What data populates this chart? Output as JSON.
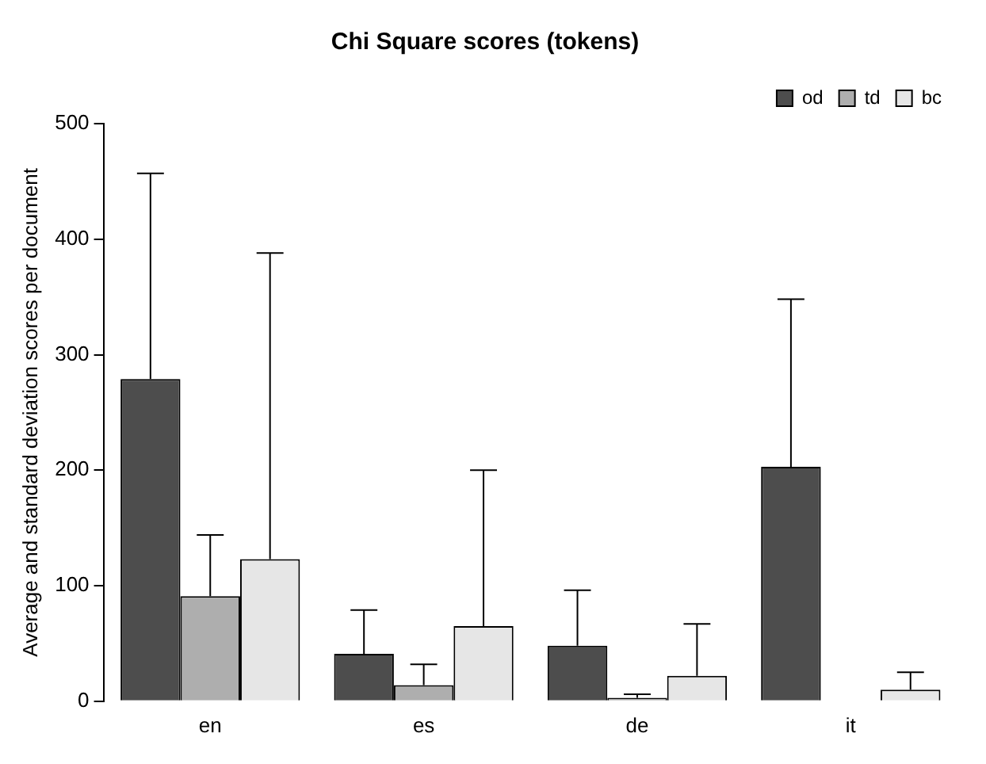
{
  "chart_data": {
    "type": "bar",
    "title": "Chi Square scores (tokens)",
    "ylabel": "Average and standard deviation scores per document",
    "categories": [
      "en",
      "es",
      "de",
      "it"
    ],
    "series": [
      {
        "name": "od",
        "color": "#4d4d4d",
        "values": [
          279,
          41,
          48,
          203
        ],
        "errors": [
          [
            279,
            457
          ],
          [
            41,
            79
          ],
          [
            48,
            96
          ],
          [
            203,
            348
          ]
        ]
      },
      {
        "name": "td",
        "color": "#aeaeae",
        "values": [
          91,
          14,
          3,
          0
        ],
        "errors": [
          [
            91,
            144
          ],
          [
            14,
            32
          ],
          [
            3,
            6
          ],
          null
        ]
      },
      {
        "name": "bc",
        "color": "#e6e6e6",
        "values": [
          123,
          65,
          22,
          10
        ],
        "errors": [
          [
            123,
            388
          ],
          [
            65,
            200
          ],
          [
            22,
            67
          ],
          [
            10,
            25
          ]
        ]
      }
    ],
    "ylim": [
      0,
      500
    ],
    "yticks": [
      0,
      100,
      200,
      300,
      400,
      500
    ],
    "grid": false,
    "legend": "top right"
  }
}
